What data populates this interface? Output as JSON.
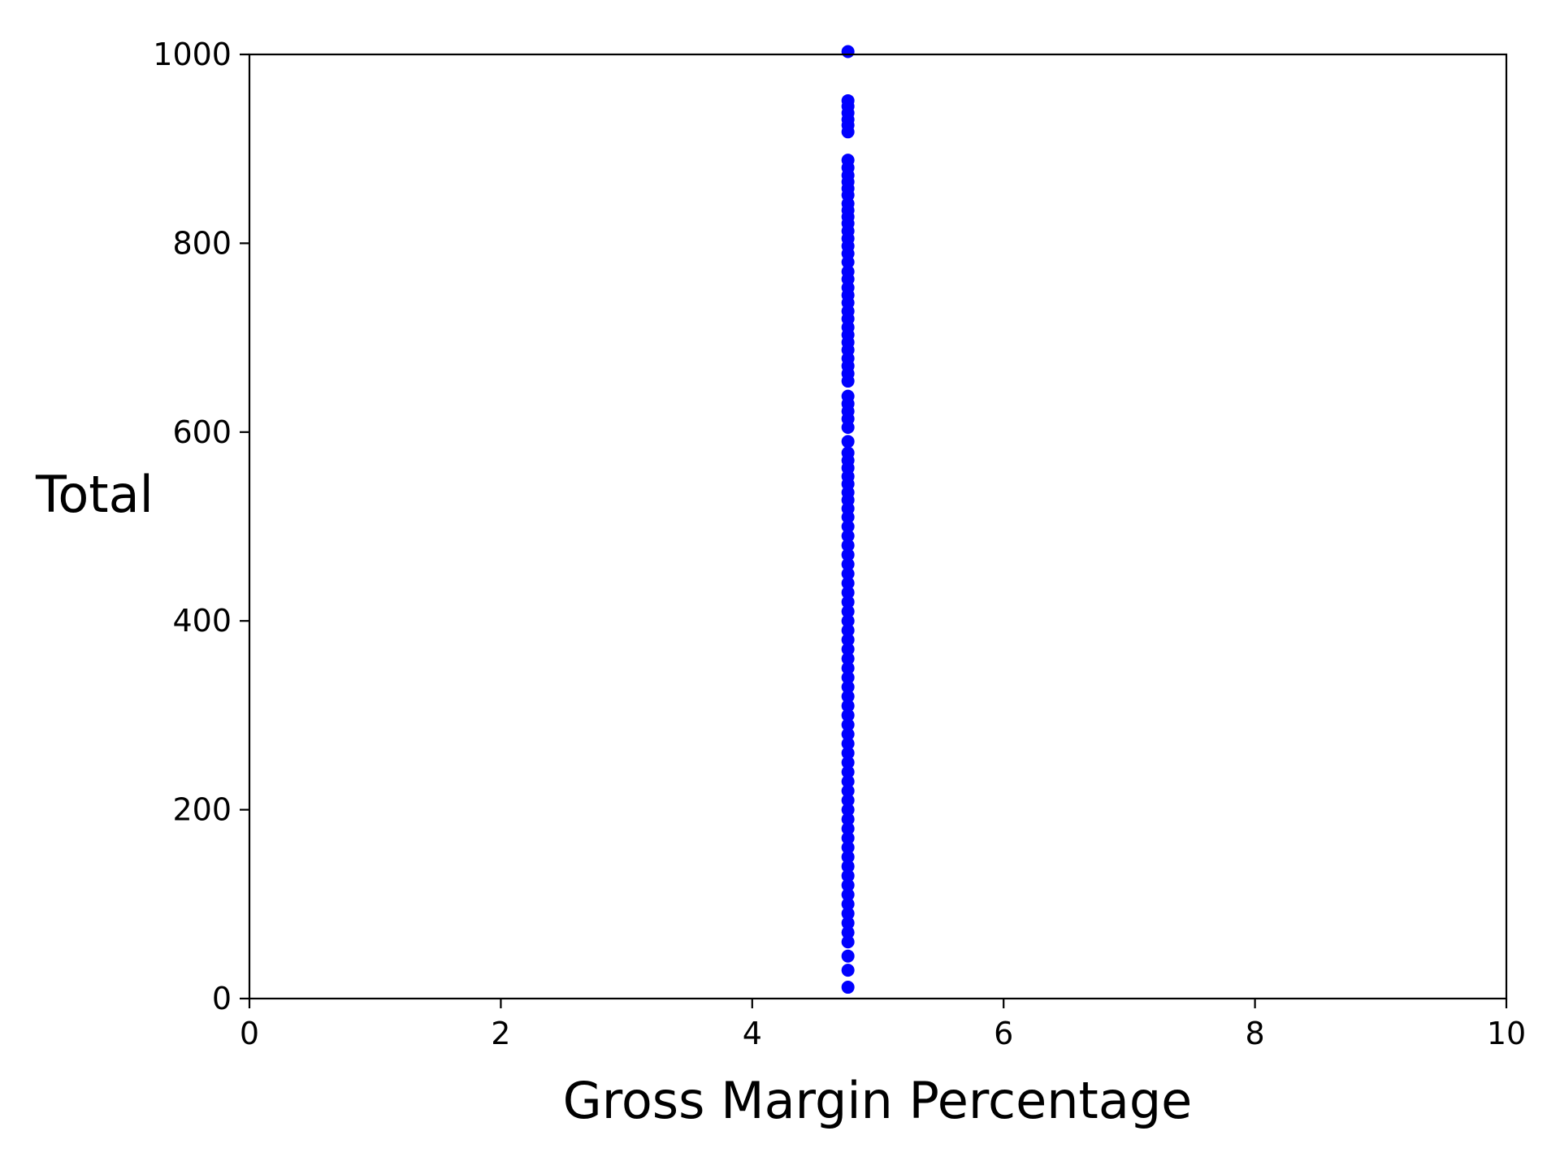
{
  "chart_data": {
    "type": "scatter",
    "title": "",
    "xlabel": "Gross Margin Percentage",
    "ylabel": "Total",
    "xlim": [
      0,
      10
    ],
    "ylim": [
      0,
      1000
    ],
    "xticks": [
      0,
      2,
      4,
      6,
      8,
      10
    ],
    "yticks": [
      0,
      200,
      400,
      600,
      800,
      1000
    ],
    "grid": false,
    "legend": "none",
    "marker_color": "#0000ff",
    "series": [
      {
        "x": [
          4.761905,
          4.761905,
          4.761905,
          4.761905,
          4.761905,
          4.761905,
          4.761905,
          4.761905,
          4.761905,
          4.761905,
          4.761905,
          4.761905,
          4.761905,
          4.761905,
          4.761905,
          4.761905,
          4.761905,
          4.761905,
          4.761905,
          4.761905,
          4.761905,
          4.761905,
          4.761905,
          4.761905,
          4.761905,
          4.761905,
          4.761905,
          4.761905,
          4.761905,
          4.761905,
          4.761905,
          4.761905,
          4.761905,
          4.761905,
          4.761905,
          4.761905,
          4.761905,
          4.761905,
          4.761905,
          4.761905,
          4.761905,
          4.761905,
          4.761905,
          4.761905,
          4.761905,
          4.761905,
          4.761905,
          4.761905,
          4.761905,
          4.761905,
          4.761905,
          4.761905,
          4.761905,
          4.761905,
          4.761905,
          4.761905,
          4.761905,
          4.761905,
          4.761905,
          4.761905,
          4.761905,
          4.761905,
          4.761905,
          4.761905,
          4.761905,
          4.761905,
          4.761905,
          4.761905,
          4.761905,
          4.761905,
          4.761905,
          4.761905,
          4.761905,
          4.761905,
          4.761905,
          4.761905,
          4.761905,
          4.761905,
          4.761905,
          4.761905,
          4.761905,
          4.761905,
          4.761905,
          4.761905,
          4.761905,
          4.761905,
          4.761905,
          4.761905,
          4.761905,
          4.761905,
          4.761905,
          4.761905,
          4.761905,
          4.761905,
          4.761905,
          4.761905,
          4.761905,
          4.761905,
          4.761905,
          4.761905
        ],
        "y": [
          1003,
          951,
          945,
          938,
          931,
          925,
          918,
          888,
          880,
          872,
          865,
          858,
          851,
          842,
          835,
          828,
          821,
          813,
          805,
          797,
          789,
          780,
          770,
          762,
          753,
          745,
          737,
          728,
          720,
          711,
          703,
          695,
          687,
          678,
          670,
          662,
          654,
          638,
          630,
          622,
          614,
          605,
          590,
          578,
          570,
          562,
          553,
          545,
          536,
          528,
          519,
          510,
          500,
          490,
          480,
          470,
          460,
          450,
          440,
          430,
          420,
          410,
          400,
          390,
          380,
          370,
          360,
          350,
          340,
          330,
          320,
          310,
          300,
          290,
          280,
          270,
          260,
          250,
          240,
          230,
          220,
          210,
          200,
          190,
          180,
          170,
          160,
          150,
          140,
          130,
          120,
          110,
          100,
          90,
          80,
          70,
          60,
          45,
          30,
          12
        ]
      }
    ]
  }
}
